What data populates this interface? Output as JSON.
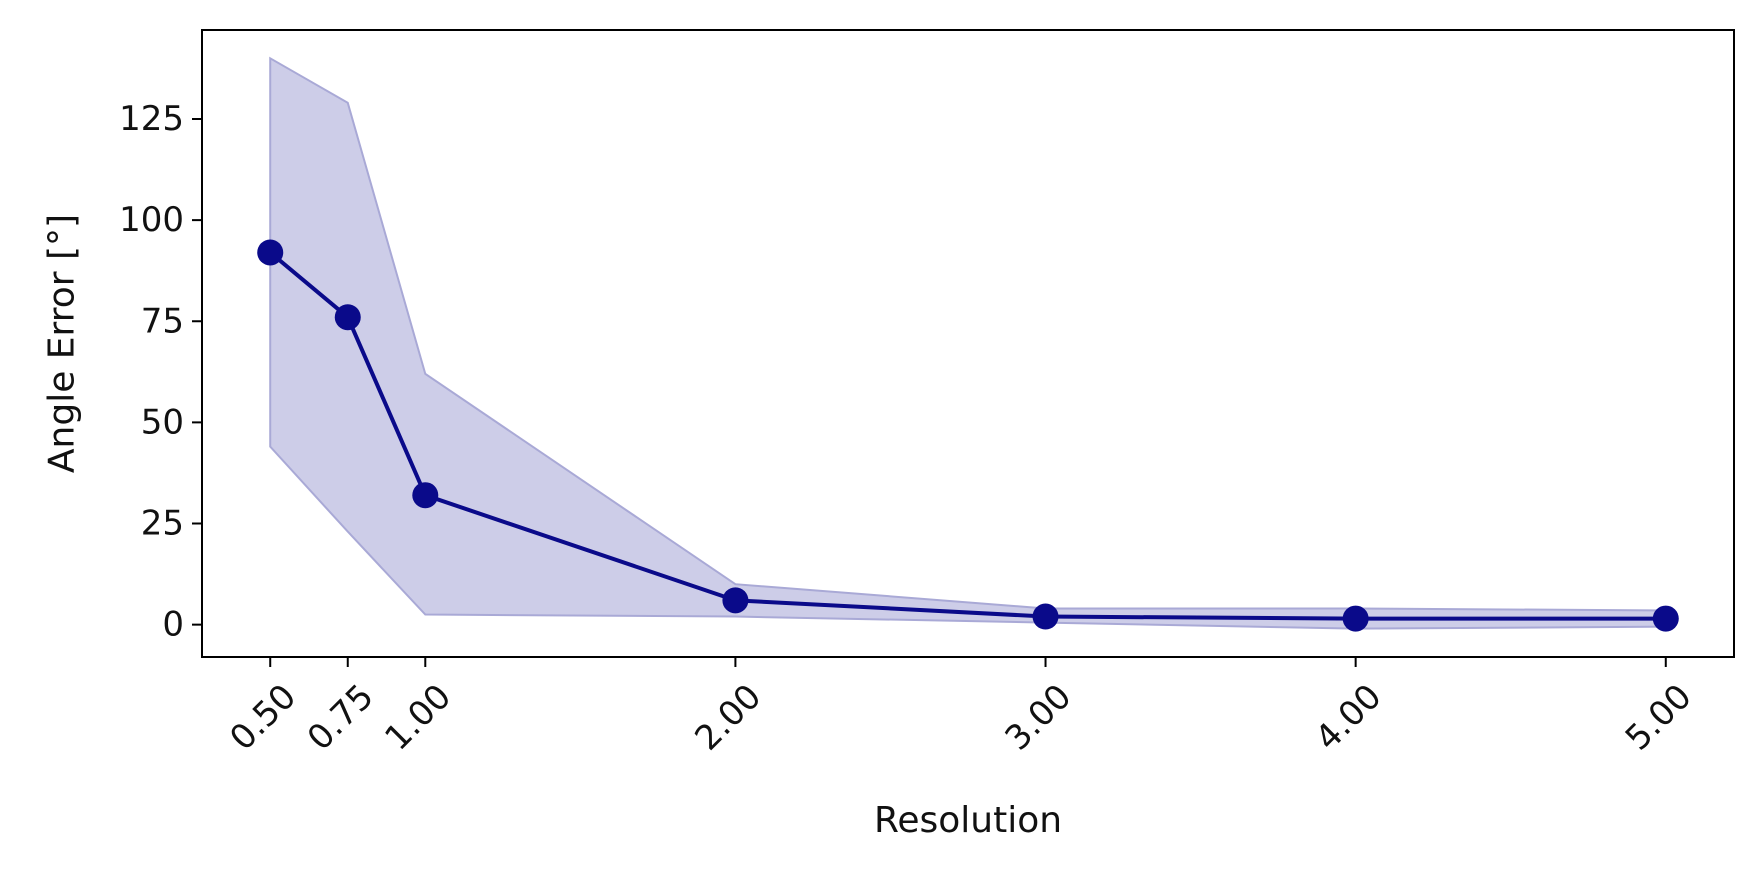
{
  "chart_data": {
    "type": "line",
    "xlabel": "Resolution",
    "ylabel": "Angle Error [°]",
    "x": [
      0.5,
      0.75,
      1.0,
      2.0,
      3.0,
      4.0,
      5.0
    ],
    "x_tick_labels": [
      "0.50",
      "0.75",
      "1.00",
      "2.00",
      "3.00",
      "4.00",
      "5.00"
    ],
    "y_ticks": [
      0,
      25,
      50,
      75,
      100,
      125
    ],
    "y_tick_labels": [
      "0",
      "25",
      "50",
      "75",
      "100",
      "125"
    ],
    "xlim": [
      0.28,
      5.22
    ],
    "ylim": [
      -8,
      147
    ],
    "grid": false,
    "series": [
      {
        "values": [
          92,
          76,
          32,
          6,
          2,
          1.5,
          1.5
        ],
        "band_upper": [
          140,
          129,
          62,
          10,
          4,
          4,
          3.5
        ],
        "band_lower": [
          44,
          23,
          2.5,
          2,
          0.5,
          -1,
          -0.5
        ],
        "color": "#0a0a8a",
        "band_color": "#cdcde8"
      }
    ]
  }
}
